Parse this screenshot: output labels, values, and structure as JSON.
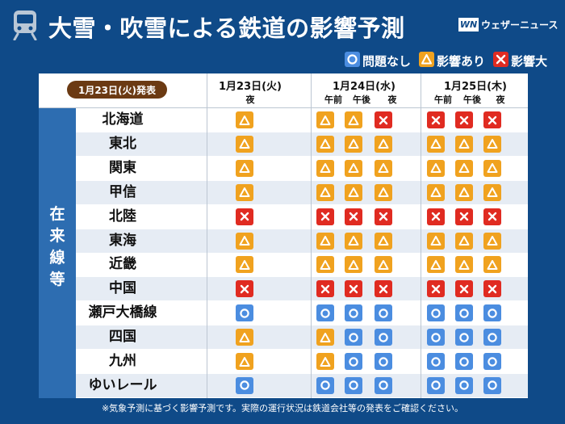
{
  "title": "大雪・吹雪による鉄道の影響予測",
  "brand": {
    "mark": "WN",
    "name": "ウェザーニュース"
  },
  "legend": [
    {
      "symbol": "ok",
      "label": "問題なし"
    },
    {
      "symbol": "warn",
      "label": "影響あり"
    },
    {
      "symbol": "bad",
      "label": "影響大"
    }
  ],
  "issued": "1月23日(火)発表",
  "days": [
    {
      "label": "1月23日(火)",
      "periods": [
        "夜"
      ]
    },
    {
      "label": "1月24日(水)",
      "periods": [
        "午前",
        "午後",
        "夜"
      ]
    },
    {
      "label": "1月25日(木)",
      "periods": [
        "午前",
        "午後",
        "夜"
      ]
    }
  ],
  "category": "在来線等",
  "rows": [
    {
      "name": "北海道",
      "status": [
        "warn",
        "warn",
        "warn",
        "bad",
        "bad",
        "bad",
        "bad"
      ]
    },
    {
      "name": "東北",
      "status": [
        "warn",
        "warn",
        "warn",
        "warn",
        "warn",
        "warn",
        "warn"
      ]
    },
    {
      "name": "関東",
      "status": [
        "warn",
        "warn",
        "warn",
        "warn",
        "warn",
        "warn",
        "warn"
      ]
    },
    {
      "name": "甲信",
      "status": [
        "warn",
        "warn",
        "warn",
        "warn",
        "warn",
        "warn",
        "warn"
      ]
    },
    {
      "name": "北陸",
      "status": [
        "bad",
        "bad",
        "bad",
        "bad",
        "bad",
        "bad",
        "bad"
      ]
    },
    {
      "name": "東海",
      "status": [
        "warn",
        "warn",
        "warn",
        "warn",
        "warn",
        "warn",
        "warn"
      ]
    },
    {
      "name": "近畿",
      "status": [
        "warn",
        "warn",
        "warn",
        "warn",
        "warn",
        "warn",
        "warn"
      ]
    },
    {
      "name": "中国",
      "status": [
        "bad",
        "bad",
        "bad",
        "bad",
        "bad",
        "bad",
        "bad"
      ]
    },
    {
      "name": "瀬戸大橋線",
      "status": [
        "ok",
        "ok",
        "ok",
        "ok",
        "ok",
        "ok",
        "ok"
      ]
    },
    {
      "name": "四国",
      "status": [
        "warn",
        "warn",
        "ok",
        "ok",
        "ok",
        "ok",
        "ok"
      ]
    },
    {
      "name": "九州",
      "status": [
        "warn",
        "warn",
        "ok",
        "ok",
        "ok",
        "ok",
        "ok"
      ]
    },
    {
      "name": "ゆいレール",
      "status": [
        "ok",
        "ok",
        "ok",
        "ok",
        "ok",
        "ok",
        "ok"
      ]
    }
  ],
  "footnote": "※気象予測に基づく影響予測です。実際の運行状況は鉄道会社等の発表をご確認ください。",
  "colors": {
    "background": "#0f4a88",
    "ok": "#4b8de0",
    "warn": "#f0a21f",
    "bad": "#e02b21",
    "issued_badge": "#6b3a13"
  }
}
